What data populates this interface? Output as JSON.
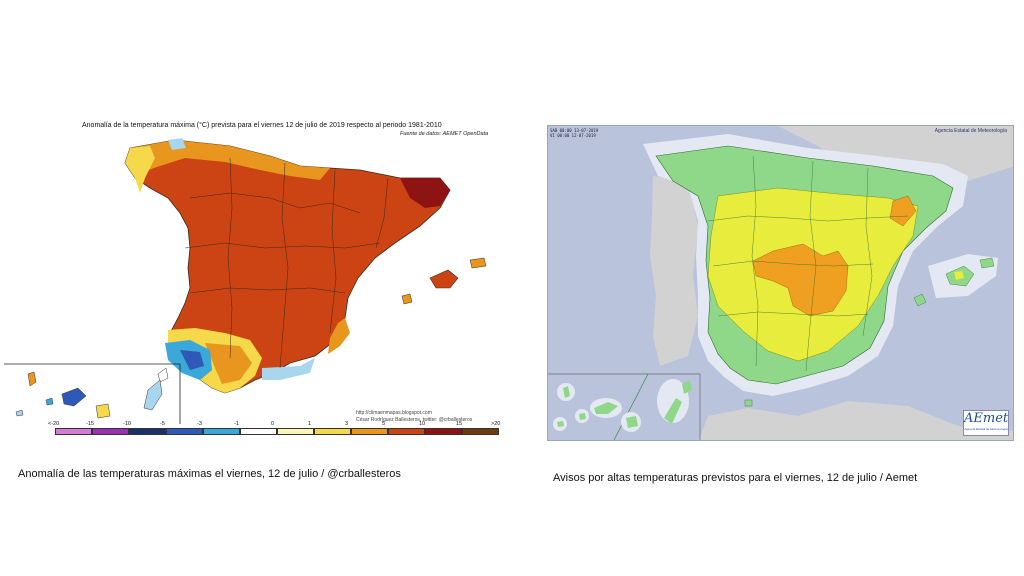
{
  "left_panel": {
    "title": "Anomalía de la temperatura máxima (°C) prevista para el viernes 12 de julio de 2019 respecto al periodo 1981-2010",
    "source": "Fuente de datos: AEMET OpenData",
    "credit_line1": "http://climaenmapas.blogspot.com",
    "credit_line2": "César Rodríguez Ballesteros, twitter: @crballesteros",
    "legend": {
      "labels": [
        "<-20",
        "-15",
        "-10",
        "-5",
        "-3",
        "-1",
        "0",
        "1",
        "3",
        "5",
        "10",
        "15",
        ">20"
      ],
      "colors": [
        "#d57ad6",
        "#9b2fb5",
        "#1b2f6b",
        "#2e59b8",
        "#3aa8d8",
        "#a8d6ee",
        "#ffffff",
        "#fbf6b8",
        "#f5d94a",
        "#e8961d",
        "#cc4413",
        "#8e1414",
        "#6b3c0e"
      ]
    }
  },
  "right_panel": {
    "header_line1": "SAB 00:00 13-07-2019",
    "header_line2": "VI 00:00 12-07-2019",
    "agency": "Agencia Estatal de Meteorología",
    "logo_text": "AEmet",
    "logo_subtext": "Agencia Estatal de Meteorología",
    "colors": {
      "sea": "#b9c3dc",
      "land": "#d2d2d2",
      "green": "#8fd88a",
      "yellow": "#e8ec3c",
      "orange": "#f0a020",
      "buffer": "#e4e8f2"
    }
  },
  "captions": {
    "left": "Anomalía de las temperaturas máximas el viernes, 12 de julio / @crballesteros",
    "right": "Avisos por altas temperaturas previstos para el viernes, 12 de julio / Aemet"
  }
}
